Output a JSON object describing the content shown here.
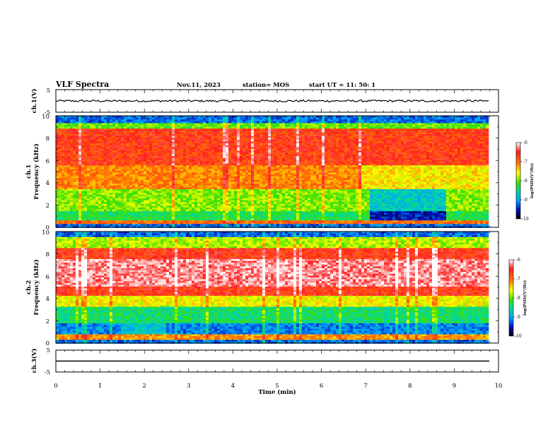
{
  "header": {
    "title": "VLF Spectra",
    "date": "Nov.11, 2023",
    "station": "station= MOS",
    "start": "start  UT =   11: 50: 1"
  },
  "chart_data": [
    {
      "type": "line",
      "name": "ch1-waveform",
      "ylabel": "ch.1(V)",
      "yticks": [
        "5",
        "-5"
      ],
      "ylim": [
        -5,
        5
      ],
      "xlim": [
        0,
        10
      ],
      "level": 0
    },
    {
      "type": "heatmap",
      "name": "ch1-spectrogram",
      "ylabel_line1": "ch.1",
      "ylabel_line2": "Frequency (kHz)",
      "ylim": [
        0,
        10
      ],
      "yticks": [
        "0",
        "2",
        "4",
        "6",
        "8",
        "10"
      ],
      "xlim": [
        0,
        10
      ],
      "colorbar": {
        "label": "log(PSD)(V²/Hz)",
        "range": [
          -10,
          -6
        ],
        "ticks": [
          "-6",
          "-7",
          "-8",
          "-9",
          "-10"
        ]
      }
    },
    {
      "type": "heatmap",
      "name": "ch2-spectrogram",
      "ylabel_line1": "ch.2",
      "ylabel_line2": "Frequency (kHz)",
      "ylim": [
        0,
        10
      ],
      "yticks": [
        "0",
        "2",
        "4",
        "6",
        "8",
        "10"
      ],
      "xlim": [
        0,
        10
      ],
      "colorbar": {
        "label": "log(PSD)(V²/Hz)",
        "range": [
          -10,
          -6
        ],
        "ticks": [
          "-6",
          "-7",
          "-8",
          "-9",
          "-10"
        ]
      }
    },
    {
      "type": "line",
      "name": "ch3-waveform",
      "ylabel": "ch.3(V)",
      "yticks": [
        "5",
        "-5"
      ],
      "ylim": [
        -5,
        5
      ],
      "xlim": [
        0,
        10
      ],
      "level": 0
    }
  ],
  "xaxis": {
    "label": "Time (min)",
    "ticks": [
      "0",
      "1",
      "2",
      "3",
      "4",
      "5",
      "6",
      "7",
      "8",
      "9",
      "10"
    ]
  }
}
